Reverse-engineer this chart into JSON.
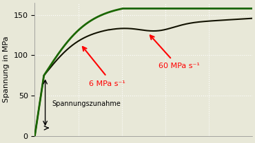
{
  "title": "",
  "ylabel": "Spannung in MPa",
  "xlabel": "",
  "ylim": [
    0,
    165
  ],
  "xlim": [
    0,
    1.0
  ],
  "yticks": [
    0,
    50,
    100,
    150
  ],
  "bg_color": "#e8e8d8",
  "grid_color": "#ffffff",
  "curve_green_color": "#1a6600",
  "curve_dark_color": "#111100",
  "label_6": "6 MPa s⁻¹",
  "label_60": "60 MPa s⁻¹",
  "label_spann": "Spannungszunahme",
  "fontsize": 8
}
